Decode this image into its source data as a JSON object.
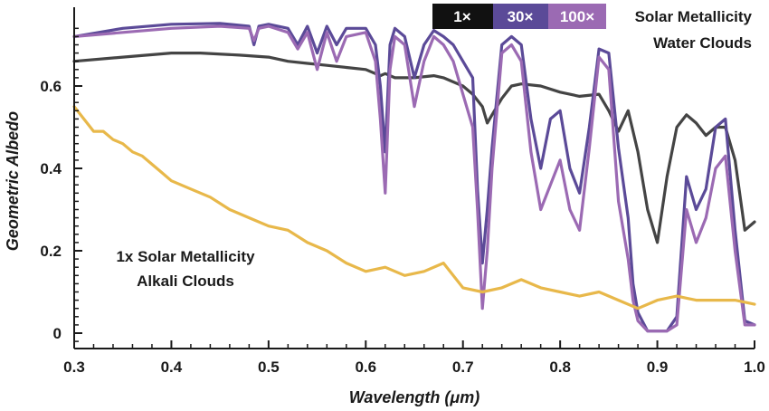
{
  "chart_data": {
    "type": "line",
    "xlabel": "Wavelength (μm)",
    "ylabel": "Geometric Albedo",
    "xlim": [
      0.3,
      1.0
    ],
    "ylim": [
      -0.02,
      0.78
    ],
    "x_ticks": [
      0.3,
      0.4,
      0.5,
      0.6,
      0.7,
      0.8,
      0.9,
      1.0
    ],
    "x_tick_labels": [
      "0.3",
      "0.4",
      "0.5",
      "0.6",
      "0.7",
      "0.8",
      "0.9",
      "1.0"
    ],
    "y_ticks": [
      0,
      0.2,
      0.4,
      0.6
    ],
    "y_tick_labels": [
      "0",
      "0.2",
      "0.4",
      "0.6"
    ],
    "legend": {
      "entries": [
        {
          "label": "1×",
          "color": "#111111"
        },
        {
          "label": "30×",
          "color": "#5b4a98"
        },
        {
          "label": "100×",
          "color": "#9b6ab3"
        }
      ],
      "title_lines": [
        "Solar Metallicity",
        "Water Clouds"
      ],
      "position": "top-right"
    },
    "annotation_lines": [
      "1x Solar Metallicity",
      "Alkali Clouds"
    ],
    "series": [
      {
        "color": "#444444",
        "x": [
          0.3,
          0.35,
          0.4,
          0.43,
          0.47,
          0.5,
          0.52,
          0.54,
          0.56,
          0.58,
          0.6,
          0.615,
          0.62,
          0.63,
          0.65,
          0.67,
          0.68,
          0.7,
          0.71,
          0.72,
          0.725,
          0.73,
          0.74,
          0.75,
          0.76,
          0.78,
          0.8,
          0.82,
          0.84,
          0.85,
          0.86,
          0.87,
          0.88,
          0.89,
          0.9,
          0.91,
          0.92,
          0.93,
          0.94,
          0.95,
          0.96,
          0.97,
          0.98,
          0.99,
          1.0
        ],
        "y": [
          0.66,
          0.67,
          0.68,
          0.68,
          0.675,
          0.67,
          0.66,
          0.655,
          0.65,
          0.645,
          0.64,
          0.625,
          0.63,
          0.62,
          0.62,
          0.625,
          0.62,
          0.6,
          0.58,
          0.55,
          0.51,
          0.53,
          0.57,
          0.6,
          0.605,
          0.6,
          0.585,
          0.575,
          0.58,
          0.54,
          0.49,
          0.54,
          0.44,
          0.3,
          0.22,
          0.38,
          0.5,
          0.53,
          0.51,
          0.48,
          0.5,
          0.5,
          0.42,
          0.25,
          0.27
        ]
      },
      {
        "color": "#5b4a98",
        "x": [
          0.3,
          0.35,
          0.4,
          0.45,
          0.48,
          0.485,
          0.49,
          0.5,
          0.52,
          0.53,
          0.54,
          0.55,
          0.56,
          0.57,
          0.58,
          0.6,
          0.61,
          0.615,
          0.62,
          0.625,
          0.63,
          0.64,
          0.65,
          0.66,
          0.67,
          0.68,
          0.69,
          0.7,
          0.71,
          0.715,
          0.72,
          0.725,
          0.73,
          0.74,
          0.75,
          0.76,
          0.77,
          0.78,
          0.79,
          0.8,
          0.81,
          0.82,
          0.83,
          0.84,
          0.85,
          0.86,
          0.87,
          0.875,
          0.88,
          0.89,
          0.9,
          0.91,
          0.92,
          0.93,
          0.94,
          0.95,
          0.96,
          0.97,
          0.98,
          0.99,
          1.0
        ],
        "y": [
          0.72,
          0.74,
          0.75,
          0.752,
          0.745,
          0.7,
          0.745,
          0.75,
          0.74,
          0.7,
          0.745,
          0.68,
          0.745,
          0.7,
          0.74,
          0.74,
          0.7,
          0.6,
          0.44,
          0.7,
          0.74,
          0.72,
          0.62,
          0.7,
          0.735,
          0.72,
          0.7,
          0.66,
          0.62,
          0.35,
          0.17,
          0.3,
          0.45,
          0.7,
          0.72,
          0.7,
          0.52,
          0.4,
          0.52,
          0.54,
          0.4,
          0.34,
          0.5,
          0.69,
          0.68,
          0.45,
          0.28,
          0.12,
          0.05,
          0.005,
          0.005,
          0.005,
          0.04,
          0.38,
          0.3,
          0.35,
          0.5,
          0.52,
          0.25,
          0.03,
          0.02
        ]
      },
      {
        "color": "#9b6ab3",
        "x": [
          0.3,
          0.35,
          0.4,
          0.45,
          0.48,
          0.485,
          0.49,
          0.5,
          0.52,
          0.53,
          0.54,
          0.55,
          0.56,
          0.57,
          0.58,
          0.6,
          0.61,
          0.615,
          0.62,
          0.625,
          0.63,
          0.64,
          0.65,
          0.66,
          0.67,
          0.68,
          0.69,
          0.7,
          0.71,
          0.715,
          0.72,
          0.725,
          0.73,
          0.74,
          0.75,
          0.76,
          0.77,
          0.78,
          0.79,
          0.8,
          0.81,
          0.82,
          0.83,
          0.84,
          0.85,
          0.86,
          0.87,
          0.875,
          0.88,
          0.89,
          0.9,
          0.91,
          0.92,
          0.93,
          0.94,
          0.95,
          0.96,
          0.97,
          0.98,
          0.99,
          1.0
        ],
        "y": [
          0.72,
          0.73,
          0.74,
          0.745,
          0.74,
          0.71,
          0.74,
          0.745,
          0.73,
          0.69,
          0.73,
          0.64,
          0.73,
          0.66,
          0.72,
          0.73,
          0.66,
          0.52,
          0.34,
          0.64,
          0.72,
          0.7,
          0.55,
          0.66,
          0.72,
          0.7,
          0.66,
          0.58,
          0.5,
          0.3,
          0.06,
          0.2,
          0.4,
          0.68,
          0.7,
          0.66,
          0.44,
          0.3,
          0.36,
          0.42,
          0.3,
          0.25,
          0.45,
          0.67,
          0.64,
          0.32,
          0.18,
          0.08,
          0.03,
          0.005,
          0.005,
          0.005,
          0.02,
          0.3,
          0.22,
          0.28,
          0.4,
          0.43,
          0.2,
          0.02,
          0.02
        ]
      },
      {
        "color": "#e8b84a",
        "x": [
          0.3,
          0.31,
          0.32,
          0.33,
          0.34,
          0.35,
          0.36,
          0.37,
          0.38,
          0.39,
          0.4,
          0.42,
          0.44,
          0.46,
          0.48,
          0.5,
          0.52,
          0.54,
          0.56,
          0.58,
          0.6,
          0.62,
          0.64,
          0.66,
          0.68,
          0.7,
          0.72,
          0.74,
          0.76,
          0.78,
          0.8,
          0.82,
          0.84,
          0.86,
          0.88,
          0.9,
          0.92,
          0.94,
          0.96,
          0.98,
          1.0
        ],
        "y": [
          0.55,
          0.52,
          0.49,
          0.49,
          0.47,
          0.46,
          0.44,
          0.43,
          0.41,
          0.39,
          0.37,
          0.35,
          0.33,
          0.3,
          0.28,
          0.26,
          0.25,
          0.22,
          0.2,
          0.17,
          0.15,
          0.16,
          0.14,
          0.15,
          0.17,
          0.11,
          0.1,
          0.11,
          0.13,
          0.11,
          0.1,
          0.09,
          0.1,
          0.08,
          0.06,
          0.08,
          0.09,
          0.08,
          0.08,
          0.08,
          0.07
        ]
      }
    ]
  }
}
